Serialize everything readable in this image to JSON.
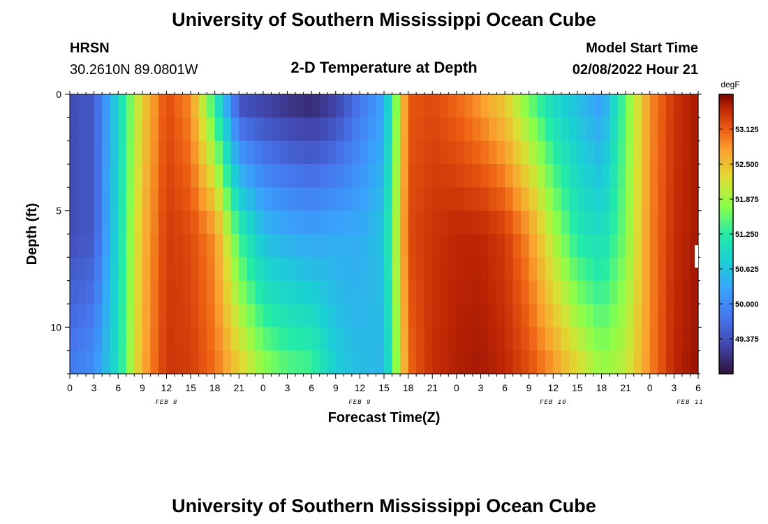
{
  "page": {
    "title": "University of Southern Mississippi Ocean Cube",
    "station": "HRSN",
    "coords": "30.2610N  89.0801W",
    "subtitle": "2-D Temperature at Depth",
    "model_label": "Model Start Time",
    "model_time": "02/08/2022 Hour 21",
    "footer_title": "University of Southern Mississippi Ocean Cube"
  },
  "chart_data": {
    "type": "heatmap",
    "xlabel": "Forecast Time(Z)",
    "ylabel": "Depth (ft)",
    "xlim": [
      0,
      78
    ],
    "ylim": [
      0,
      12
    ],
    "y_inverted": true,
    "x_ticks": [
      {
        "t": 0,
        "label": "0"
      },
      {
        "t": 3,
        "label": "3"
      },
      {
        "t": 6,
        "label": "6"
      },
      {
        "t": 9,
        "label": "9"
      },
      {
        "t": 12,
        "label": "12"
      },
      {
        "t": 15,
        "label": "15"
      },
      {
        "t": 18,
        "label": "18"
      },
      {
        "t": 21,
        "label": "21"
      },
      {
        "t": 24,
        "label": "0"
      },
      {
        "t": 27,
        "label": "3"
      },
      {
        "t": 30,
        "label": "6"
      },
      {
        "t": 33,
        "label": "9"
      },
      {
        "t": 36,
        "label": "12"
      },
      {
        "t": 39,
        "label": "15"
      },
      {
        "t": 42,
        "label": "18"
      },
      {
        "t": 45,
        "label": "21"
      },
      {
        "t": 48,
        "label": "0"
      },
      {
        "t": 51,
        "label": "3"
      },
      {
        "t": 54,
        "label": "6"
      },
      {
        "t": 57,
        "label": "9"
      },
      {
        "t": 60,
        "label": "12"
      },
      {
        "t": 63,
        "label": "15"
      },
      {
        "t": 66,
        "label": "18"
      },
      {
        "t": 69,
        "label": "21"
      },
      {
        "t": 72,
        "label": "0"
      },
      {
        "t": 75,
        "label": "3"
      },
      {
        "t": 78,
        "label": "6"
      }
    ],
    "day_labels": [
      {
        "t": 12,
        "label": "FEB 8"
      },
      {
        "t": 36,
        "label": "FEB 9"
      },
      {
        "t": 60,
        "label": "FEB 10"
      },
      {
        "t": 77,
        "label": "FEB 11"
      }
    ],
    "y_ticks": [
      {
        "v": 0,
        "label": "0"
      },
      {
        "v": 5,
        "label": "5"
      },
      {
        "v": 10,
        "label": "10"
      }
    ],
    "colorbar": {
      "unit": "degF",
      "min": 48.75,
      "max": 53.75,
      "ticks": [
        53.125,
        52.5,
        51.875,
        51.25,
        50.625,
        50.0,
        49.375
      ],
      "tick_labels": [
        "53.125",
        "52.500",
        "51.875",
        "51.250",
        "50.625",
        "50.000",
        "49.375"
      ]
    },
    "grid": false,
    "legend": "colorbar-right"
  }
}
